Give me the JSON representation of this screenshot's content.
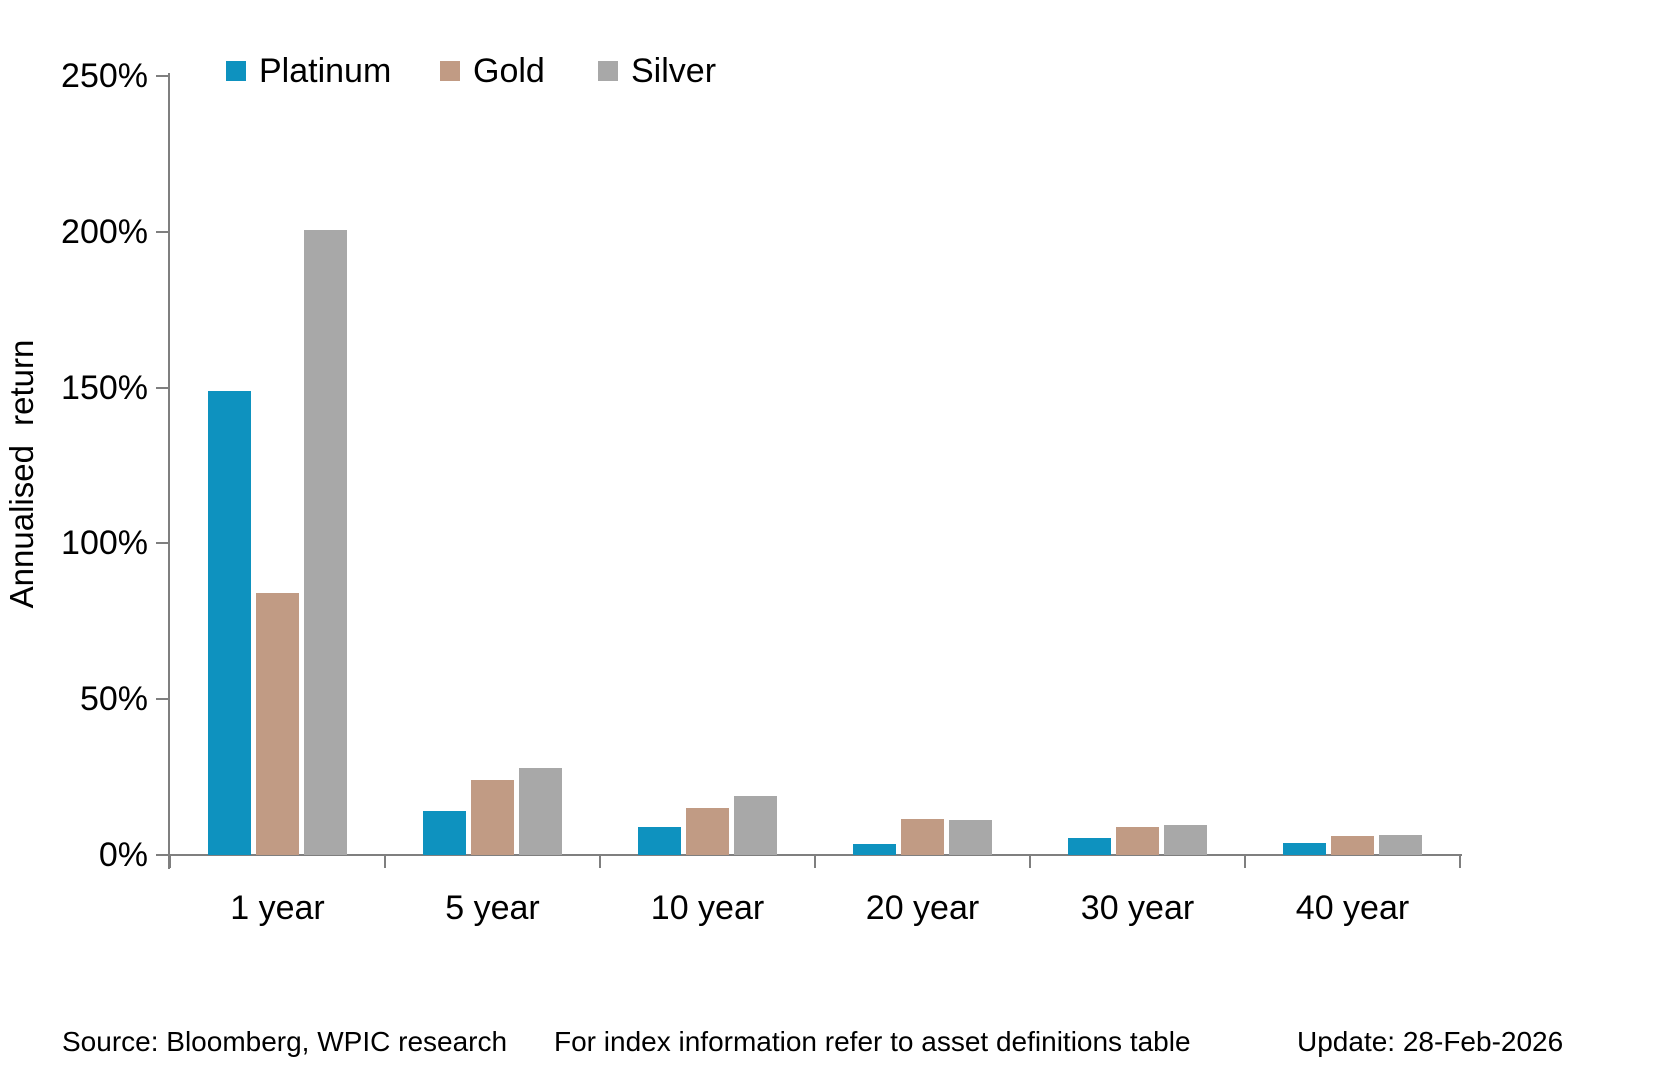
{
  "chart_data": {
    "type": "bar",
    "title": "",
    "ylabel": "Annualised return",
    "xlabel": "",
    "categories": [
      "1 year",
      "5 year",
      "10 year",
      "20 year",
      "30 year",
      "40 year"
    ],
    "series": [
      {
        "name": "Platinum",
        "color": "#0e92bf",
        "values": [
          149,
          14,
          9,
          3.5,
          5.5,
          4
        ]
      },
      {
        "name": "Gold",
        "color": "#c19b84",
        "values": [
          84,
          24,
          15,
          11.5,
          9,
          6
        ]
      },
      {
        "name": "Silver",
        "color": "#a8a8a8",
        "values": [
          200.5,
          28,
          19,
          11.3,
          9.5,
          6.5
        ]
      }
    ],
    "ylim": [
      0,
      250
    ],
    "y_tick_step": 50,
    "y_tick_labels": [
      "0%",
      "50%",
      "100%",
      "150%",
      "200%",
      "250%"
    ],
    "grid": false,
    "legend_position": "top",
    "axis_color": "#7f7f7f"
  },
  "footer": {
    "source": "Source: Bloomberg, WPIC research",
    "note": "For index information refer to asset definitions table",
    "update": "Update: 28-Feb-2026"
  }
}
